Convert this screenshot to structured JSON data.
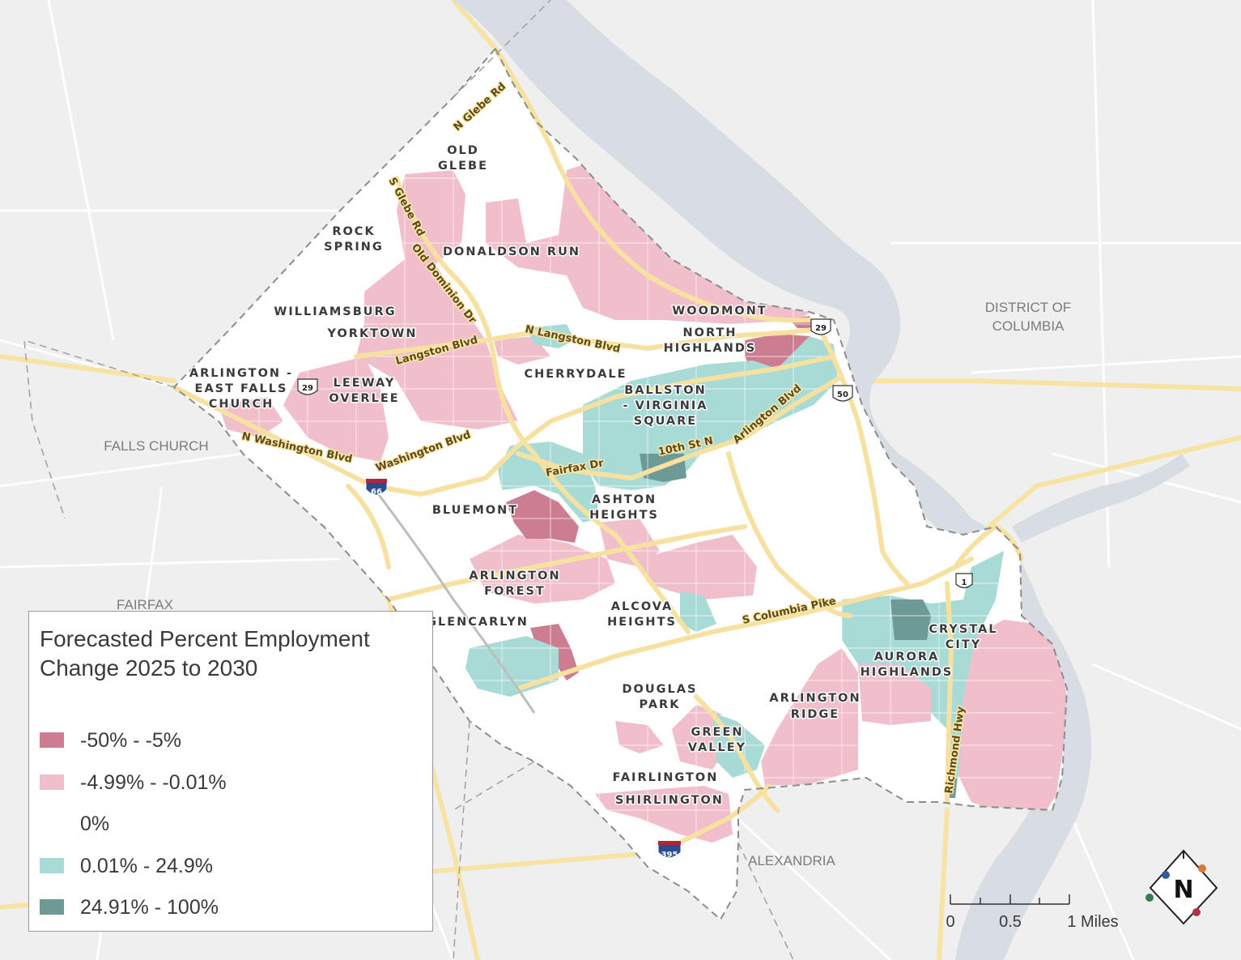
{
  "legend": {
    "title": "Forecasted Percent Employment Change 2025 to 2030",
    "items": [
      {
        "label": "-50% - -5%",
        "color": "#cc7d92"
      },
      {
        "label": "-4.99% - -0.01%",
        "color": "#f1bfcb"
      },
      {
        "label": "0%",
        "color": "#ffffff"
      },
      {
        "label": "0.01% - 24.9%",
        "color": "#a9dbd6"
      },
      {
        "label": "24.91% - 100%",
        "color": "#6e9a96"
      }
    ]
  },
  "neighborhoods": {
    "old_glebe": [
      "OLD",
      "GLEBE"
    ],
    "rock_spring": [
      "ROCK",
      "SPRING"
    ],
    "donaldson_run": "DONALDSON RUN",
    "williamsburg": "WILLIAMSBURG",
    "yorktown": "YORKTOWN",
    "woodmont": "WOODMONT",
    "north_highlands": [
      "NORTH",
      "HIGHLANDS"
    ],
    "arlington_east_falls_church": [
      "ARLINGTON -",
      "EAST FALLS",
      "CHURCH"
    ],
    "leeway_overlee": [
      "LEEWAY",
      "OVERLEE"
    ],
    "cherrydale": "CHERRYDALE",
    "ballston": [
      "BALLSTON",
      "- VIRGINIA",
      "SQUARE"
    ],
    "bluemont": "BLUEMONT",
    "ashton_heights": [
      "ASHTON",
      "HEIGHTS"
    ],
    "arlington_forest": [
      "ARLINGTON",
      "FOREST"
    ],
    "glencarlyn": "GLENCARLYN",
    "alcova_heights": [
      "ALCOVA",
      "HEIGHTS"
    ],
    "crystal_city": [
      "CRYSTAL",
      "CITY"
    ],
    "aurora_highlands": [
      "AURORA",
      "HIGHLANDS"
    ],
    "douglas_park": [
      "DOUGLAS",
      "PARK"
    ],
    "arlington_ridge": [
      "ARLINGTON",
      "RIDGE"
    ],
    "green_valley": [
      "GREEN",
      "VALLEY"
    ],
    "fairlington": "FAIRLINGTON",
    "shirlington": "SHIRLINGTON"
  },
  "places": {
    "district_of_columbia": [
      "DISTRICT OF",
      "COLUMBIA"
    ],
    "falls_church": "FALLS CHURCH",
    "fairfax": "FAIRFAX",
    "alexandria": "ALEXANDRIA"
  },
  "roads": {
    "n_glebe_rd": "N Glebe Rd",
    "s_glebe_rd": "S Glebe Rd",
    "old_dominion_dr": "Old Dominion Dr",
    "n_langston_blvd": "N Langston Blvd",
    "langston_blvd": "Langston Blvd",
    "n_washington_blvd": "N Washington Blvd",
    "washington_blvd": "Washington Blvd",
    "fairfax_dr": "Fairfax Dr",
    "tenth_st_n": "10th St N",
    "arlington_blvd": "Arlington Blvd",
    "s_columbia_pike": "S Columbia Pike",
    "richmond_hwy": "Richmond Hwy"
  },
  "shields": {
    "us29_a": "29",
    "us29_b": "29",
    "us50": "50",
    "us1": "1",
    "i66": "66",
    "i395": "395"
  },
  "scale_bar": {
    "ticks": [
      "0",
      "0.5",
      "1 Miles"
    ]
  },
  "north_arrow": {
    "letter": "N"
  }
}
